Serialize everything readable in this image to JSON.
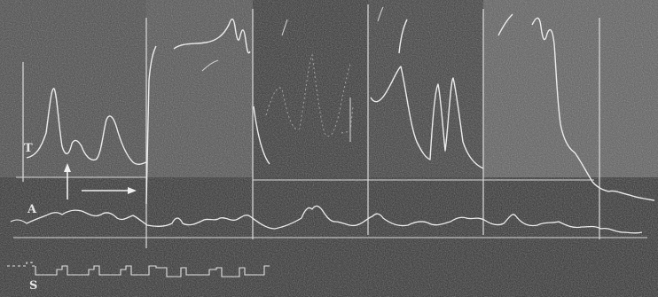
{
  "labels": {
    "t": "T",
    "a": "A",
    "s": "S"
  },
  "colors": {
    "background": "#262626",
    "panel_light": "#4a4a4a",
    "panel_dark": "#2f2f2f",
    "trace": "#e8e8e8",
    "trace_faint": "#cfcfcf"
  }
}
